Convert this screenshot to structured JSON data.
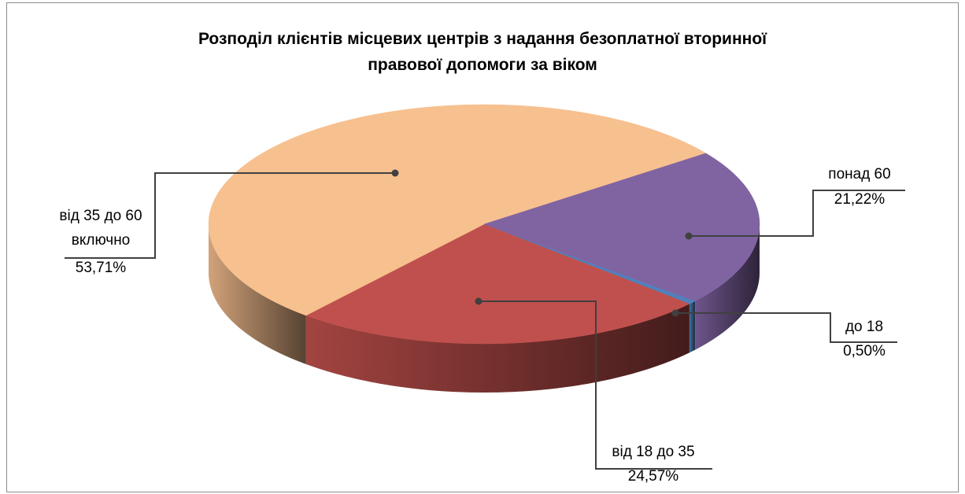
{
  "chart_data": {
    "type": "pie",
    "title": "Розподіл клієнтів місцевих центрів з надання безоплатної вторинної правової допомоги за віком",
    "categories": [
      "до 18",
      "від 18 до 35",
      "від 35 до 60 включно",
      "понад 60"
    ],
    "values": [
      0.5,
      24.57,
      53.71,
      21.22
    ],
    "value_labels": [
      "0,50%",
      "24,57%",
      "53,71%",
      "21,22%"
    ],
    "colors": [
      "#4f81bd",
      "#c0504d",
      "#f7c08f",
      "#8064a2"
    ]
  }
}
